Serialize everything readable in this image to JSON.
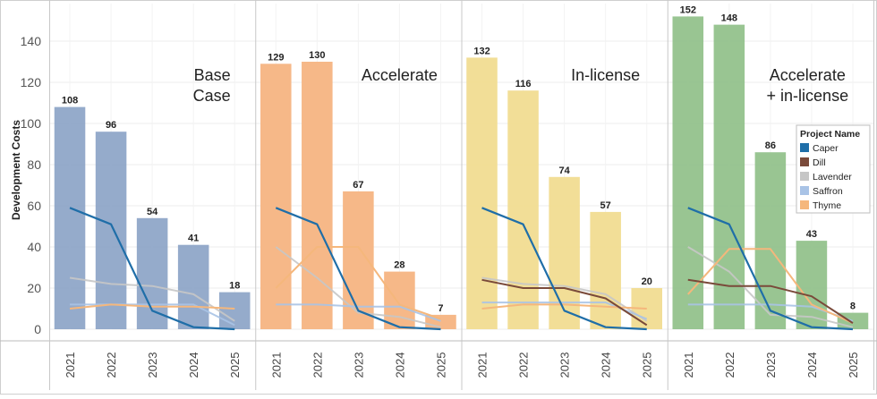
{
  "chart_data": {
    "type": "bar",
    "ylabel": "Development Costs",
    "ylim": [
      0,
      155
    ],
    "y_ticks": [
      0,
      20,
      40,
      60,
      80,
      100,
      120,
      140
    ],
    "categories": [
      "2021",
      "2022",
      "2023",
      "2024",
      "2025"
    ],
    "grid": true,
    "legend": {
      "title": "Project Name",
      "placement": "right",
      "items": [
        {
          "name": "Caper",
          "color": "#1f6ea8"
        },
        {
          "name": "Dill",
          "color": "#7a4a3a"
        },
        {
          "name": "Lavender",
          "color": "#c6c6c6"
        },
        {
          "name": "Saffron",
          "color": "#a9c3e6"
        },
        {
          "name": "Thyme",
          "color": "#f5b77c"
        }
      ]
    },
    "panels": [
      {
        "title_lines": [
          "Base",
          "Case"
        ],
        "bar_color": "#8fa7c8",
        "bar_values": [
          108,
          96,
          54,
          41,
          18
        ],
        "lines": [
          {
            "name": "Caper",
            "values": [
              59,
              51,
              9,
              1,
              0
            ]
          },
          {
            "name": "Lavender",
            "values": [
              25,
              22,
              21,
              17,
              4
            ]
          },
          {
            "name": "Saffron",
            "values": [
              12,
              12,
              12,
              12,
              2
            ]
          },
          {
            "name": "Thyme",
            "values": [
              10,
              12,
              11,
              11,
              10
            ]
          }
        ]
      },
      {
        "title_lines": [
          "Accelerate"
        ],
        "bar_color": "#f5b482",
        "bar_values": [
          129,
          130,
          67,
          28,
          7
        ],
        "lines": [
          {
            "name": "Caper",
            "values": [
              59,
              51,
              9,
              1,
              0
            ]
          },
          {
            "name": "Lavender",
            "values": [
              40,
              25,
              8,
              6,
              1
            ]
          },
          {
            "name": "Saffron",
            "values": [
              12,
              12,
              11,
              11,
              4
            ]
          },
          {
            "name": "Thyme",
            "values": [
              20,
              40,
              40,
              12,
              5
            ]
          }
        ]
      },
      {
        "title_lines": [
          "In-license"
        ],
        "bar_color": "#f1dc91",
        "bar_values": [
          132,
          116,
          74,
          57,
          20
        ],
        "lines": [
          {
            "name": "Caper",
            "values": [
              59,
              51,
              9,
              1,
              0
            ]
          },
          {
            "name": "Dill",
            "values": [
              24,
              20,
              20,
              15,
              2
            ]
          },
          {
            "name": "Lavender",
            "values": [
              25,
              22,
              21,
              17,
              4
            ]
          },
          {
            "name": "Saffron",
            "values": [
              13,
              13,
              13,
              13,
              5
            ]
          },
          {
            "name": "Thyme",
            "values": [
              10,
              12,
              12,
              11,
              10
            ]
          }
        ]
      },
      {
        "title_lines": [
          "Accelerate",
          "+ in-license"
        ],
        "bar_color": "#93c28c",
        "bar_values": [
          152,
          148,
          86,
          43,
          8
        ],
        "lines": [
          {
            "name": "Caper",
            "values": [
              59,
              51,
              9,
              1,
              0
            ]
          },
          {
            "name": "Dill",
            "values": [
              24,
              21,
              21,
              16,
              3
            ]
          },
          {
            "name": "Lavender",
            "values": [
              40,
              28,
              7,
              6,
              1
            ]
          },
          {
            "name": "Saffron",
            "values": [
              12,
              12,
              12,
              11,
              4
            ]
          },
          {
            "name": "Thyme",
            "values": [
              17,
              39,
              39,
              12,
              3
            ]
          }
        ]
      }
    ]
  }
}
